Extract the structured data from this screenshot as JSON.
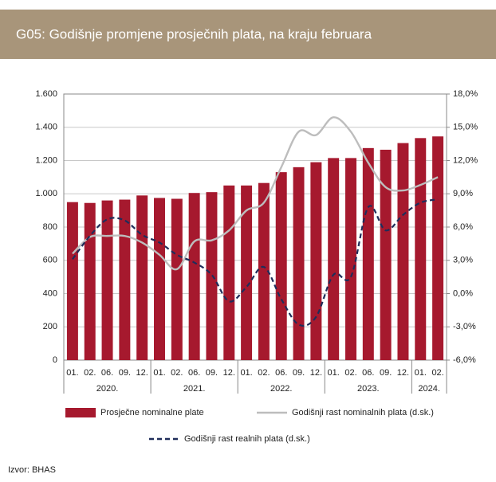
{
  "chart_data": {
    "type": "bar",
    "title": "G05: Godišnje promjene prosječnih plata, na kraju februara",
    "source": "Izvor: BHAS",
    "categories": [
      "01.",
      "02.",
      "06.",
      "09.",
      "12.",
      "01.",
      "02.",
      "06.",
      "09.",
      "12.",
      "01.",
      "02.",
      "06.",
      "09.",
      "12.",
      "01.",
      "02.",
      "06.",
      "09.",
      "12.",
      "01.",
      "02."
    ],
    "groups": [
      {
        "label": "2020.",
        "span": 5
      },
      {
        "label": "2021.",
        "span": 5
      },
      {
        "label": "2022.",
        "span": 5
      },
      {
        "label": "2023.",
        "span": 5
      },
      {
        "label": "2024.",
        "span": 2
      }
    ],
    "ylim": [
      0,
      1600
    ],
    "yticks": [
      0,
      200,
      400,
      600,
      800,
      {
        "value": 1000,
        "label": "1.000"
      },
      {
        "value": 1200,
        "label": "1.200"
      },
      {
        "value": 1400,
        "label": "1.400"
      },
      {
        "value": 1600,
        "label": "1.600"
      }
    ],
    "y2lim": [
      -6,
      18
    ],
    "y2ticks": [
      {
        "value": -6,
        "label": "-6,0%"
      },
      {
        "value": -3,
        "label": "-3,0%"
      },
      {
        "value": 0,
        "label": "0,0%"
      },
      {
        "value": 3,
        "label": "3,0%"
      },
      {
        "value": 6,
        "label": "6,0%"
      },
      {
        "value": 9,
        "label": "9,0%"
      },
      {
        "value": 12,
        "label": "12,0%"
      },
      {
        "value": 15,
        "label": "15,0%"
      },
      {
        "value": 18,
        "label": "18,0%"
      }
    ],
    "grid": true,
    "series": [
      {
        "name": "Prosječne nominalne plate",
        "type": "bar",
        "color": "#a6192e",
        "values": [
          950,
          945,
          960,
          965,
          990,
          975,
          970,
          1005,
          1010,
          1050,
          1050,
          1065,
          1130,
          1160,
          1190,
          1215,
          1215,
          1275,
          1265,
          1305,
          1335,
          1345
        ]
      },
      {
        "name": "Godišnji rast nominalnih plata (d.sk.)",
        "type": "line",
        "axis": "y2",
        "color": "#bdbdbd",
        "style": "solid",
        "values": [
          3.6,
          5.1,
          5.2,
          5.2,
          4.6,
          3.5,
          2.2,
          4.7,
          4.8,
          5.7,
          7.5,
          8.2,
          11.4,
          14.6,
          14.3,
          15.9,
          14.6,
          11.8,
          9.6,
          9.3,
          9.8,
          10.5
        ]
      },
      {
        "name": "Godišnji rast realnih plata (d.sk.)",
        "type": "line",
        "axis": "y2",
        "color": "#1f2d5a",
        "style": "dashed",
        "values": [
          3.1,
          5.2,
          6.7,
          6.6,
          5.3,
          4.6,
          3.5,
          2.8,
          1.7,
          -0.7,
          0.6,
          2.4,
          -0.5,
          -2.8,
          -2.1,
          1.7,
          1.5,
          7.8,
          5.7,
          7.1,
          8.2,
          8.5
        ]
      }
    ]
  }
}
